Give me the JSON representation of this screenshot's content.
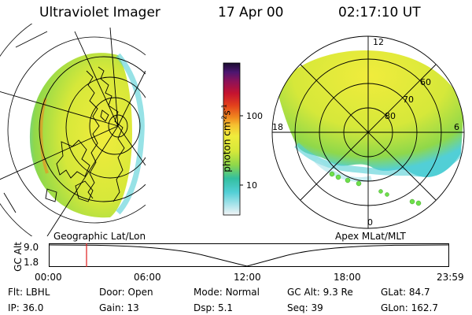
{
  "header": {
    "instrument": "Ultraviolet Imager",
    "date": "17 Apr 00",
    "time": "02:17:10 UT"
  },
  "colorbar": {
    "units": "photon cm",
    "ticks": [
      "100",
      "10"
    ]
  },
  "polar_plot": {
    "mlt_labels": [
      "12",
      "18",
      "6",
      "0"
    ],
    "lat_labels": [
      "60",
      "70",
      "80"
    ]
  },
  "projection_labels": {
    "left": "Geographic Lat/Lon",
    "right": "Apex MLat/MLT"
  },
  "altitude_plot": {
    "axis_label": "GC Alt",
    "y_ticks": [
      "9.0",
      "1.8"
    ],
    "x_ticks": [
      "00:00",
      "06:00",
      "12:00",
      "18:00",
      "23:59"
    ],
    "current_time_marker": "02:17"
  },
  "info": {
    "row1": [
      {
        "label": "Flt:",
        "value": "LBHL"
      },
      {
        "label": "Door:",
        "value": "Open"
      },
      {
        "label": "Mode:",
        "value": "Normal"
      },
      {
        "label": "GC Alt:",
        "value": "9.3 Re"
      },
      {
        "label": "GLat:",
        "value": "84.7"
      }
    ],
    "row2": [
      {
        "label": "IP:",
        "value": "36.0"
      },
      {
        "label": "Gain:",
        "value": "13"
      },
      {
        "label": "Dsp:",
        "value": "5.1"
      },
      {
        "label": "Seq:",
        "value": "39"
      },
      {
        "label": "GLon:",
        "value": "162.7"
      }
    ]
  },
  "colors": {
    "colorbar_stops": [
      "#f2f4f6",
      "#a7e3ea",
      "#52cfd6",
      "#33bfa0",
      "#8fd84a",
      "#d6e83a",
      "#f0ec3c",
      "#f5c231",
      "#f08a1f",
      "#e3411c",
      "#c5132f",
      "#8c1259",
      "#4c1670",
      "#1a0c30"
    ],
    "markers": "#6ee04a",
    "time_marker": "#e01b1b"
  }
}
